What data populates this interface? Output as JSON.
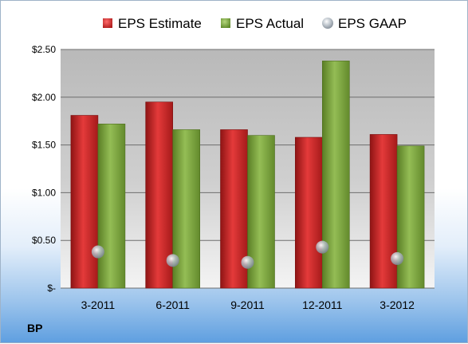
{
  "ticker": "BP",
  "colors": {
    "estimate": "#d42a2a",
    "actual": "#7fa640",
    "gaap": "#9aa4ae"
  },
  "chart_data": {
    "type": "bar",
    "title": "",
    "xlabel": "",
    "ylabel": "",
    "categories": [
      "3-2011",
      "6-2011",
      "9-2011",
      "12-2011",
      "3-2012"
    ],
    "series": [
      {
        "name": "EPS Estimate",
        "type": "bar",
        "values": [
          1.81,
          1.95,
          1.66,
          1.58,
          1.61
        ]
      },
      {
        "name": "EPS Actual",
        "type": "bar",
        "values": [
          1.72,
          1.66,
          1.6,
          2.38,
          1.49
        ]
      },
      {
        "name": "EPS GAAP",
        "type": "scatter",
        "values": [
          0.38,
          0.29,
          0.27,
          0.43,
          0.31
        ]
      }
    ],
    "ylim": [
      0,
      2.5
    ],
    "yticks": [
      0,
      0.5,
      1.0,
      1.5,
      2.0,
      2.5
    ],
    "ytick_labels": [
      "$-",
      "$0.50",
      "$1.00",
      "$1.50",
      "$2.00",
      "$2.50"
    ],
    "grid": true,
    "legend": "top"
  }
}
